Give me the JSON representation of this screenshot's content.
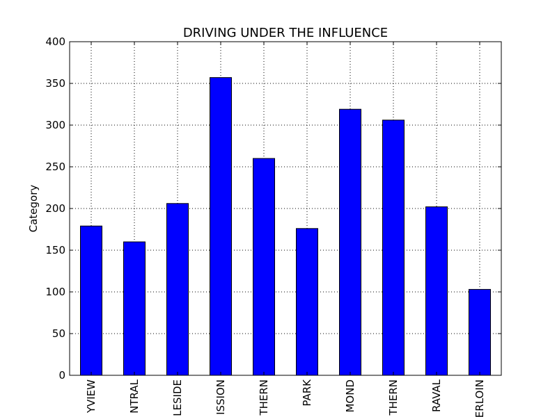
{
  "chart_data": {
    "type": "bar",
    "title": "DRIVING UNDER THE INFLUENCE",
    "xlabel": "",
    "ylabel": "Category",
    "categories": [
      "YVIEW",
      "NTRAL",
      "LESIDE",
      "ISSION",
      "THERN",
      "PARK",
      "MOND",
      "THERN",
      "RAVAL",
      "ERLOIN"
    ],
    "values": [
      179,
      160,
      206,
      357,
      260,
      176,
      319,
      306,
      202,
      103
    ],
    "yticks": [
      0,
      50,
      100,
      150,
      200,
      250,
      300,
      350,
      400
    ],
    "ylim": [
      0,
      400
    ],
    "grid": true,
    "bar_color": "#0000ff",
    "edge_color": "#000000"
  }
}
